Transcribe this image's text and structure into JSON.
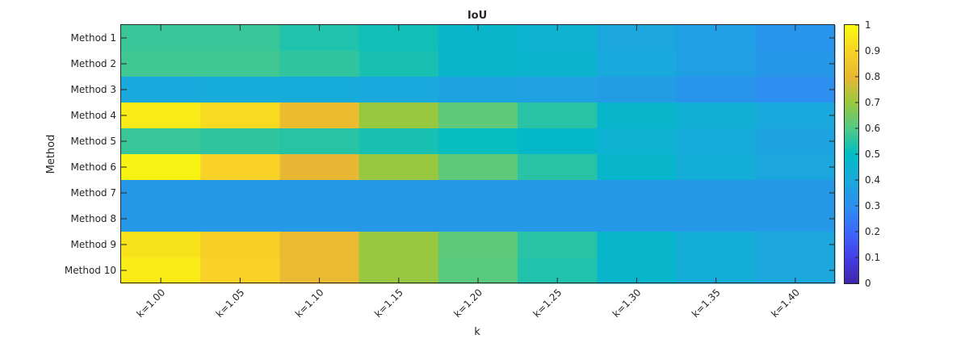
{
  "chart_data": {
    "type": "heatmap",
    "title": "IoU",
    "xlabel": "k",
    "ylabel": "Method",
    "x_categories": [
      "k=1.00",
      "k=1.05",
      "k=1.10",
      "k=1.15",
      "k=1.20",
      "k=1.25",
      "k=1.30",
      "k=1.35",
      "k=1.40"
    ],
    "y_categories": [
      "Method 1",
      "Method 2",
      "Method 3",
      "Method 4",
      "Method 5",
      "Method 6",
      "Method 7",
      "Method 8",
      "Method 9",
      "Method 10"
    ],
    "values": [
      [
        0.57,
        0.57,
        0.54,
        0.52,
        0.47,
        0.45,
        0.39,
        0.36,
        0.32
      ],
      [
        0.58,
        0.58,
        0.56,
        0.53,
        0.47,
        0.46,
        0.4,
        0.36,
        0.33
      ],
      [
        0.4,
        0.41,
        0.41,
        0.4,
        0.38,
        0.37,
        0.35,
        0.32,
        0.3
      ],
      [
        0.96,
        0.92,
        0.82,
        0.7,
        0.62,
        0.55,
        0.47,
        0.43,
        0.4
      ],
      [
        0.57,
        0.56,
        0.55,
        0.53,
        0.51,
        0.48,
        0.45,
        0.41,
        0.38
      ],
      [
        0.98,
        0.9,
        0.8,
        0.7,
        0.62,
        0.55,
        0.47,
        0.42,
        0.39
      ],
      [
        0.34,
        0.34,
        0.34,
        0.34,
        0.34,
        0.34,
        0.34,
        0.34,
        0.34
      ],
      [
        0.34,
        0.34,
        0.34,
        0.34,
        0.34,
        0.34,
        0.34,
        0.34,
        0.34
      ],
      [
        0.94,
        0.89,
        0.81,
        0.7,
        0.62,
        0.55,
        0.47,
        0.42,
        0.39
      ],
      [
        0.96,
        0.9,
        0.81,
        0.7,
        0.61,
        0.54,
        0.47,
        0.42,
        0.39
      ]
    ],
    "colorbar": {
      "colormap": "parula",
      "range": [
        0,
        1
      ],
      "ticks": [
        0,
        0.1,
        0.2,
        0.3,
        0.4,
        0.5,
        0.6,
        0.7,
        0.8,
        0.9,
        1
      ],
      "tick_labels": [
        "0",
        "0.1",
        "0.2",
        "0.3",
        "0.4",
        "0.5",
        "0.6",
        "0.7",
        "0.8",
        "0.9",
        "1"
      ]
    }
  }
}
